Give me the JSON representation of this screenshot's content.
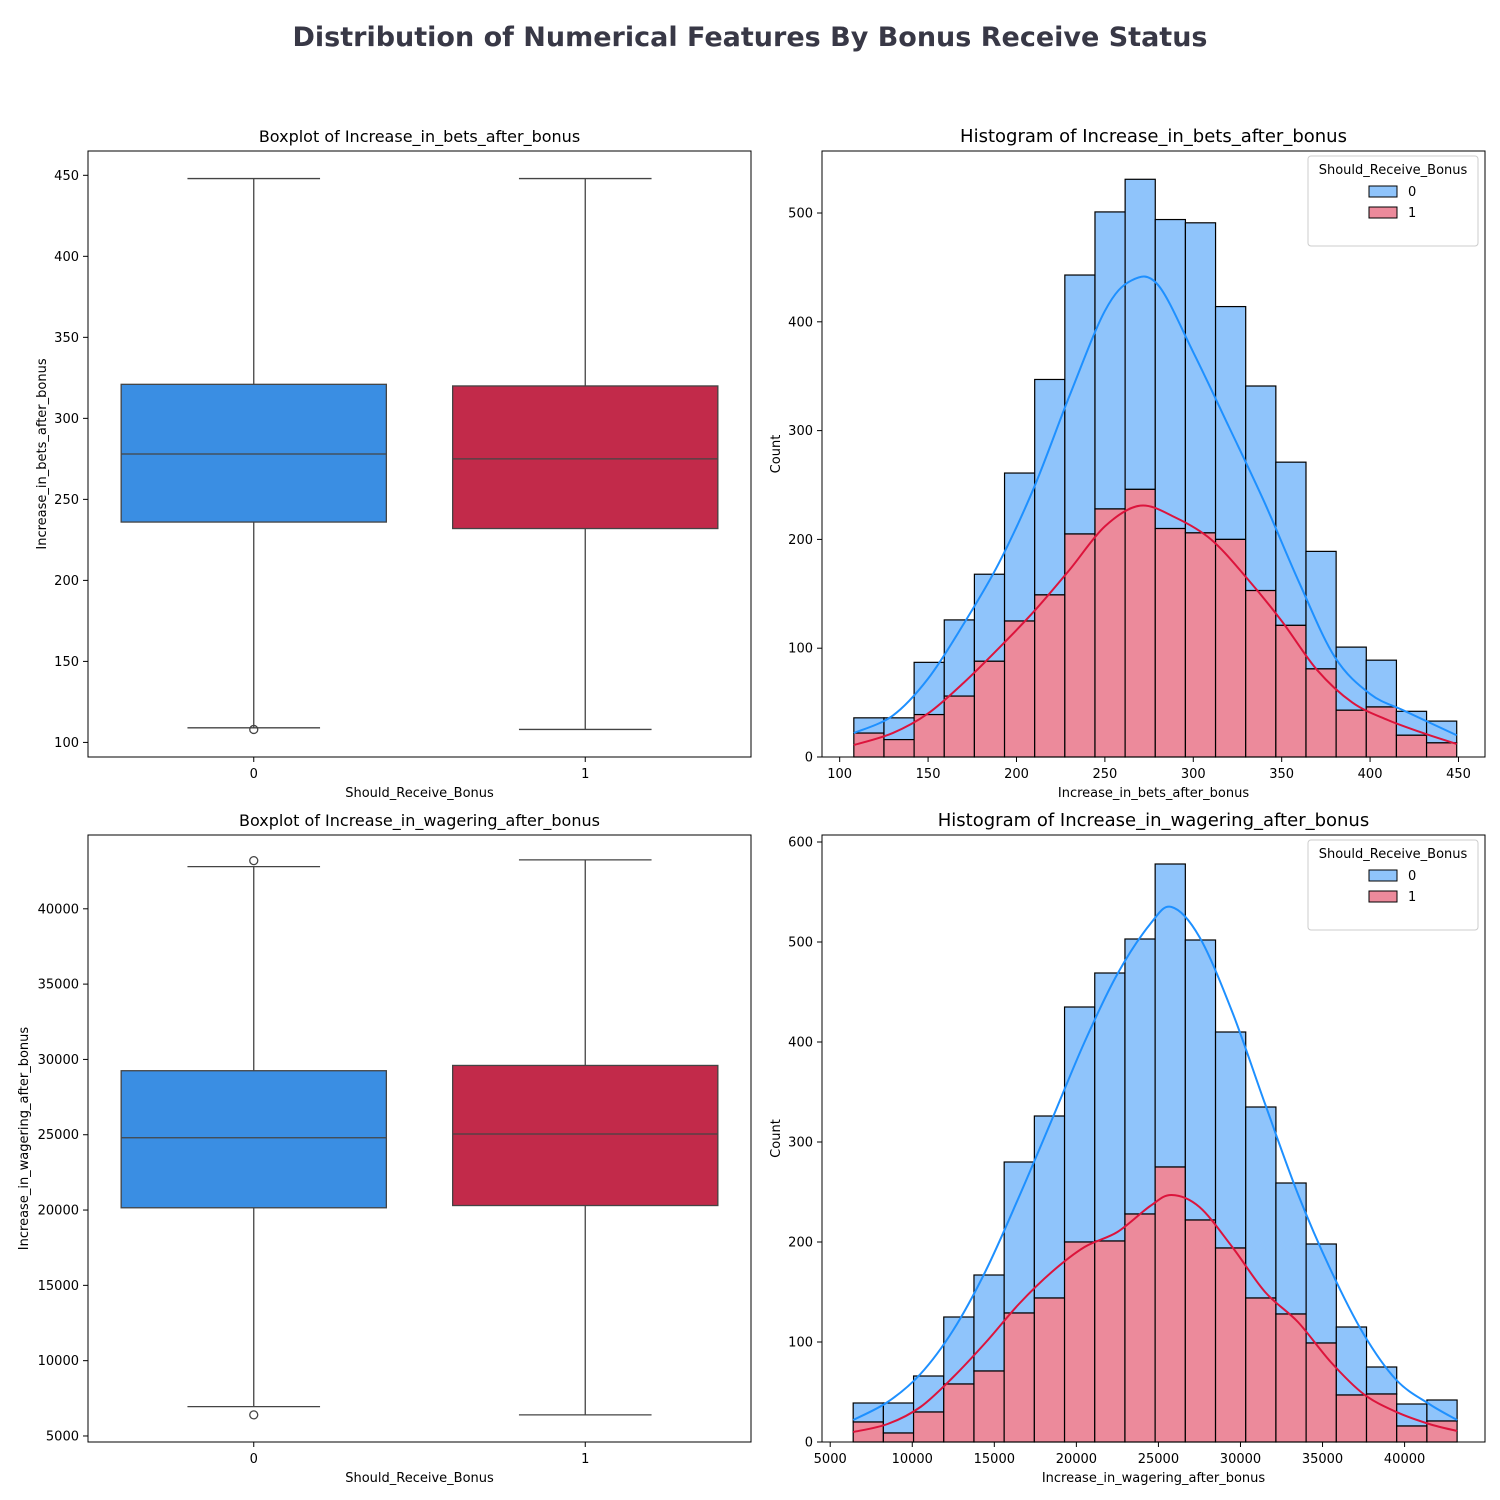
{
  "suptitle": "Distribution of Numerical Features By Bonus Receive Status",
  "chart_data": [
    {
      "type": "box",
      "title": "Boxplot of Increase_in_bets_after_bonus",
      "xlabel": "Should_Receive_Bonus",
      "ylabel": "Increase_in_bets_after_bonus",
      "categories": [
        "0",
        "1"
      ],
      "colors": [
        "#3a8ee3",
        "#c22a4a"
      ],
      "ylim": [
        91,
        465
      ],
      "yticks": [
        100,
        150,
        200,
        250,
        300,
        350,
        400,
        450
      ],
      "boxes": [
        {
          "category": "0",
          "whisker_low": 109,
          "q1": 236,
          "median": 278,
          "q3": 321,
          "whisker_high": 448,
          "outliers": [
            108
          ]
        },
        {
          "category": "1",
          "whisker_low": 108,
          "q1": 232,
          "median": 275,
          "q3": 320,
          "whisker_high": 448,
          "outliers": []
        }
      ]
    },
    {
      "type": "histogram",
      "title": "Histogram of Increase_in_bets_after_bonus",
      "xlabel": "Increase_in_bets_after_bonus",
      "ylabel": "Count",
      "xlim": [
        90,
        465
      ],
      "ylim": [
        0,
        557
      ],
      "xticks": [
        100,
        150,
        200,
        250,
        300,
        350,
        400,
        450
      ],
      "yticks": [
        0,
        100,
        200,
        300,
        400,
        500
      ],
      "legend_title": "Should_Receive_Bonus",
      "legend_position": "top-right",
      "series_colors": {
        "0": "#1e90ff",
        "1": "#dc143c"
      },
      "bar_fill": {
        "0": "#8fc4fb",
        "1": "#ec8a9b"
      },
      "bin_edges": [
        108,
        125.05,
        142.1,
        159.15,
        176.2,
        193.25,
        210.3,
        227.35,
        244.4,
        261.45,
        278.5,
        295.55,
        312.6,
        329.65,
        346.7,
        363.75,
        380.8,
        397.85,
        414.9,
        431.95,
        449
      ],
      "series": [
        {
          "name": "0",
          "values": [
            14,
            20,
            48,
            70,
            80,
            136,
            198,
            238,
            273,
            285,
            284,
            285,
            214,
            188,
            150,
            108,
            58,
            43,
            22,
            20
          ]
        },
        {
          "name": "1",
          "values": [
            22,
            16,
            39,
            56,
            88,
            125,
            149,
            205,
            228,
            246,
            210,
            206,
            200,
            153,
            121,
            81,
            43,
            46,
            20,
            13
          ]
        }
      ],
      "kde": [
        {
          "name": "0",
          "x": [
            108,
            130,
            150,
            170,
            190,
            210,
            230,
            250,
            265,
            280,
            300,
            320,
            340,
            360,
            380,
            400,
            420,
            449
          ],
          "y": [
            22,
            38,
            72,
            122,
            178,
            248,
            332,
            410,
            438,
            434,
            372,
            304,
            235,
            160,
            92,
            58,
            42,
            20
          ]
        },
        {
          "name": "1",
          "x": [
            108,
            130,
            150,
            170,
            190,
            210,
            230,
            250,
            270,
            290,
            310,
            330,
            350,
            370,
            390,
            410,
            430,
            449
          ],
          "y": [
            11,
            22,
            40,
            68,
            100,
            134,
            172,
            212,
            231,
            220,
            200,
            165,
            125,
            80,
            50,
            34,
            22,
            12
          ]
        }
      ]
    },
    {
      "type": "box",
      "title": "Boxplot of Increase_in_wagering_after_bonus",
      "xlabel": "Should_Receive_Bonus",
      "ylabel": "Increase_in_wagering_after_bonus",
      "categories": [
        "0",
        "1"
      ],
      "colors": [
        "#3a8ee3",
        "#c22a4a"
      ],
      "ylim": [
        4600,
        44900
      ],
      "yticks": [
        5000,
        10000,
        15000,
        20000,
        25000,
        30000,
        35000,
        40000
      ],
      "boxes": [
        {
          "category": "0",
          "whisker_low": 6950,
          "q1": 20150,
          "median": 24800,
          "q3": 29250,
          "whisker_high": 42800,
          "outliers": [
            6400,
            43200
          ]
        },
        {
          "category": "1",
          "whisker_low": 6400,
          "q1": 20300,
          "median": 25050,
          "q3": 29600,
          "whisker_high": 43250,
          "outliers": []
        }
      ]
    },
    {
      "type": "histogram",
      "title": "Histogram of Increase_in_wagering_after_bonus",
      "xlabel": "Increase_in_wagering_after_bonus",
      "ylabel": "Count",
      "xlim": [
        4500,
        44900
      ],
      "ylim": [
        0,
        607
      ],
      "xticks": [
        5000,
        10000,
        15000,
        20000,
        25000,
        30000,
        35000,
        40000
      ],
      "yticks": [
        0,
        100,
        200,
        300,
        400,
        500,
        600
      ],
      "legend_title": "Should_Receive_Bonus",
      "legend_position": "top-right",
      "series_colors": {
        "0": "#1e90ff",
        "1": "#dc143c"
      },
      "bar_fill": {
        "0": "#8fc4fb",
        "1": "#ec8a9b"
      },
      "bin_edges": [
        6400,
        8240,
        10080,
        11920,
        13760,
        15600,
        17440,
        19280,
        21120,
        22960,
        24800,
        26640,
        28480,
        30320,
        32160,
        34000,
        35840,
        37680,
        39520,
        41360,
        43200
      ],
      "series": [
        {
          "name": "0",
          "values": [
            19,
            30,
            36,
            67,
            96,
            151,
            182,
            235,
            268,
            275,
            303,
            280,
            216,
            191,
            131,
            99,
            68,
            27,
            22,
            21
          ]
        },
        {
          "name": "1",
          "values": [
            20,
            9,
            30,
            58,
            71,
            129,
            144,
            200,
            201,
            228,
            275,
            222,
            194,
            144,
            128,
            99,
            47,
            48,
            16,
            21
          ]
        }
      ],
      "kde": [
        {
          "name": "0",
          "x": [
            6400,
            8500,
            10500,
            12500,
            14500,
            16500,
            18500,
            20500,
            22500,
            24500,
            25800,
            27500,
            29500,
            31500,
            33500,
            35500,
            37500,
            39500,
            41500,
            43200
          ],
          "y": [
            22,
            40,
            68,
            112,
            172,
            245,
            322,
            400,
            468,
            518,
            535,
            505,
            430,
            338,
            248,
            172,
            108,
            62,
            38,
            22
          ]
        },
        {
          "name": "1",
          "x": [
            6400,
            8500,
            10500,
            12500,
            14500,
            16500,
            18500,
            20500,
            22500,
            24500,
            25800,
            27500,
            29500,
            31500,
            33500,
            35500,
            37500,
            39500,
            41500,
            43200
          ],
          "y": [
            10,
            18,
            35,
            65,
            100,
            138,
            170,
            195,
            210,
            236,
            247,
            235,
            195,
            150,
            120,
            80,
            48,
            30,
            18,
            11
          ]
        }
      ]
    }
  ]
}
